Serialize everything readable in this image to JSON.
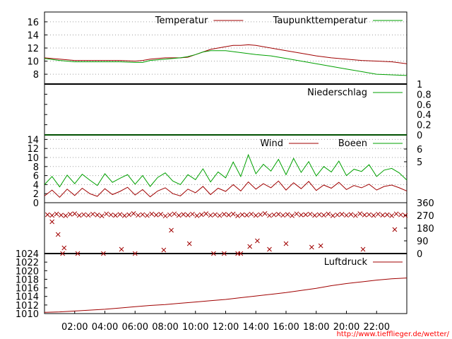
{
  "colors": {
    "red": "#a00000",
    "green": "#00a000",
    "grid": "#a0a0a0",
    "credit": "#ff0000"
  },
  "x_axis": {
    "start_hour": 0,
    "end_hour": 24,
    "ticks": [
      {
        "hour": 2,
        "label": "02:00"
      },
      {
        "hour": 4,
        "label": "04:00"
      },
      {
        "hour": 6,
        "label": "06:00"
      },
      {
        "hour": 8,
        "label": "08:00"
      },
      {
        "hour": 10,
        "label": "10:00"
      },
      {
        "hour": 12,
        "label": "12:00"
      },
      {
        "hour": 14,
        "label": "14:00"
      },
      {
        "hour": 16,
        "label": "16:00"
      },
      {
        "hour": 18,
        "label": "18:00"
      },
      {
        "hour": 20,
        "label": "20:00"
      },
      {
        "hour": 22,
        "label": "22:00"
      }
    ]
  },
  "credit": "http://www.tiefflieger.de/wetter/",
  "chart_data": [
    {
      "type": "line",
      "panel": "temperature",
      "ylim": [
        6.5,
        17.5
      ],
      "y_ticks": [
        "8",
        "10",
        "12",
        "14",
        "16"
      ],
      "grid": true,
      "legend_position": "top-right",
      "series": [
        {
          "name": "Temperatur",
          "color": "#a00000",
          "x": [
            0,
            1,
            2,
            3,
            4,
            5,
            6,
            6.5,
            7,
            8,
            9,
            9.5,
            10,
            10.5,
            11,
            11.5,
            12,
            12.5,
            13,
            13.5,
            14,
            15,
            16,
            17,
            18,
            19,
            20,
            21,
            22,
            23,
            24
          ],
          "y": [
            10.5,
            10.3,
            10.1,
            10.1,
            10.1,
            10.1,
            10.0,
            10.1,
            10.3,
            10.5,
            10.5,
            10.6,
            11.0,
            11.4,
            11.8,
            12.0,
            12.2,
            12.4,
            12.4,
            12.5,
            12.4,
            12.0,
            11.6,
            11.2,
            10.8,
            10.5,
            10.3,
            10.1,
            10.0,
            9.9,
            9.6
          ]
        },
        {
          "name": "Taupunkttemperatur",
          "color": "#00a000",
          "x": [
            0,
            1,
            2,
            3,
            4,
            5,
            6,
            6.5,
            7,
            8,
            9,
            9.5,
            10,
            10.5,
            11,
            12,
            13,
            14,
            15,
            16,
            17,
            18,
            19,
            20,
            21,
            22,
            23,
            24
          ],
          "y": [
            10.4,
            10.1,
            9.9,
            9.9,
            9.9,
            9.9,
            9.8,
            9.8,
            10.1,
            10.3,
            10.5,
            10.7,
            11.0,
            11.4,
            11.6,
            11.6,
            11.3,
            11.0,
            10.8,
            10.4,
            10.0,
            9.6,
            9.2,
            8.8,
            8.4,
            8.0,
            7.9,
            7.8
          ]
        }
      ]
    },
    {
      "type": "line",
      "panel": "precipitation",
      "ylim": [
        0,
        1
      ],
      "y_ticks": [
        "0",
        "0.2",
        "0.4",
        "0.6",
        "0.8",
        "1"
      ],
      "grid": false,
      "legend_position": "top-right",
      "series": [
        {
          "name": "Niederschlag",
          "color": "#00a000",
          "x": [
            0,
            24
          ],
          "y": [
            0,
            0
          ]
        }
      ]
    },
    {
      "type": "line",
      "panel": "wind",
      "ylim": [
        0,
        15
      ],
      "y_ticks": [
        "0",
        "2",
        "4",
        "6",
        "8",
        "10",
        "12",
        "14"
      ],
      "y2_ticks": [
        "5",
        "6"
      ],
      "grid": true,
      "legend_position": "top-right",
      "series": [
        {
          "name": "Wind",
          "color": "#a00000",
          "x": [
            0,
            0.5,
            1,
            1.5,
            2,
            2.5,
            3,
            3.5,
            4,
            4.5,
            5,
            5.5,
            6,
            6.5,
            7,
            7.5,
            8,
            8.5,
            9,
            9.5,
            10,
            10.5,
            11,
            11.5,
            12,
            12.5,
            13,
            13.5,
            14,
            14.5,
            15,
            15.5,
            16,
            16.5,
            17,
            17.5,
            18,
            18.5,
            19,
            19.5,
            20,
            20.5,
            21,
            21.5,
            22,
            22.5,
            23,
            23.5,
            24
          ],
          "y": [
            1.5,
            2.8,
            1.2,
            3.0,
            1.6,
            3.2,
            2.0,
            1.4,
            3.1,
            1.8,
            2.5,
            3.4,
            1.7,
            2.9,
            1.3,
            2.6,
            3.3,
            2.0,
            1.5,
            3.0,
            2.2,
            3.6,
            1.8,
            3.2,
            2.5,
            4.0,
            2.6,
            4.6,
            3.0,
            4.2,
            3.3,
            4.8,
            2.8,
            4.4,
            3.1,
            4.7,
            2.7,
            3.9,
            3.2,
            4.5,
            2.9,
            3.8,
            3.3,
            4.1,
            2.8,
            3.6,
            3.9,
            3.3,
            2.6
          ]
        },
        {
          "name": "Boeen",
          "color": "#00a000",
          "x": [
            0,
            0.5,
            1,
            1.5,
            2,
            2.5,
            3,
            3.5,
            4,
            4.5,
            5,
            5.5,
            6,
            6.5,
            7,
            7.5,
            8,
            8.5,
            9,
            9.5,
            10,
            10.5,
            11,
            11.5,
            12,
            12.5,
            13,
            13.5,
            14,
            14.5,
            15,
            15.5,
            16,
            16.5,
            17,
            17.5,
            18,
            18.5,
            19,
            19.5,
            20,
            20.5,
            21,
            21.5,
            22,
            22.5,
            23,
            23.5,
            24
          ],
          "y": [
            4.0,
            5.8,
            3.5,
            6.1,
            4.2,
            6.3,
            5.0,
            3.8,
            6.4,
            4.5,
            5.4,
            6.2,
            4.1,
            6.0,
            3.6,
            5.6,
            6.6,
            4.8,
            4.0,
            6.2,
            5.1,
            7.5,
            4.6,
            6.8,
            5.5,
            9.0,
            5.8,
            10.6,
            6.4,
            8.5,
            7.0,
            9.6,
            6.2,
            9.8,
            6.7,
            9.1,
            5.9,
            8.0,
            6.8,
            9.2,
            6.0,
            7.4,
            6.9,
            8.4,
            5.8,
            7.2,
            7.6,
            6.6,
            5.0
          ]
        }
      ]
    },
    {
      "type": "scatter",
      "panel": "wind-direction",
      "ylim": [
        0,
        360
      ],
      "y2_ticks": [
        "0",
        "90",
        "180",
        "270",
        "360"
      ],
      "grid": false,
      "series": [
        {
          "name": "",
          "color": "#a00000",
          "x": [
            0.2,
            0.5,
            0.8,
            1.1,
            1.4,
            1.7,
            2.0,
            2.3,
            2.6,
            2.9,
            3.2,
            3.5,
            3.8,
            4.1,
            4.4,
            4.7,
            5.0,
            5.3,
            5.6,
            5.9,
            6.2,
            6.5,
            6.8,
            7.1,
            7.4,
            7.7,
            8.0,
            8.3,
            8.6,
            8.9,
            9.2,
            9.5,
            9.8,
            10.1,
            10.4,
            10.7,
            11.0,
            11.3,
            11.6,
            11.9,
            12.2,
            12.5,
            12.8,
            13.1,
            13.4,
            13.7,
            14.0,
            14.3,
            14.6,
            14.9,
            15.2,
            15.5,
            15.8,
            16.1,
            16.4,
            16.7,
            17.0,
            17.3,
            17.6,
            17.9,
            18.2,
            18.5,
            18.8,
            19.1,
            19.4,
            19.7,
            20.0,
            20.3,
            20.6,
            20.9,
            21.2,
            21.5,
            21.8,
            22.1,
            22.4,
            22.7,
            23.0,
            23.3,
            23.6,
            23.9,
            0.5,
            0.9,
            1.3,
            5.1,
            7.9,
            8.4,
            9.6,
            13.6,
            14.1,
            14.9,
            16.0,
            17.7,
            18.3,
            21.1,
            23.2,
            1.2,
            2.2,
            3.9,
            6.0,
            11.2,
            11.9,
            12.8,
            13.0
          ],
          "y": [
            275,
            270,
            280,
            272,
            268,
            278,
            282,
            270,
            276,
            271,
            279,
            273,
            267,
            281,
            274,
            270,
            277,
            268,
            275,
            283,
            271,
            276,
            269,
            280,
            273,
            278,
            266,
            274,
            281,
            270,
            277,
            272,
            279,
            268,
            275,
            282,
            271,
            276,
            269,
            278,
            273,
            280,
            267,
            275,
            272,
            279,
            270,
            276,
            283,
            269,
            274,
            278,
            271,
            277,
            268,
            281,
            273,
            275,
            279,
            270,
            276,
            272,
            280,
            268,
            274,
            278,
            271,
            277,
            269,
            282,
            273,
            276,
            270,
            279,
            272,
            275,
            268,
            281,
            274,
            270,
            225,
            135,
            40,
            30,
            25,
            165,
            70,
            50,
            90,
            30,
            70,
            45,
            55,
            30,
            170,
            0,
            0,
            0,
            0,
            0,
            0,
            0,
            0
          ]
        }
      ]
    },
    {
      "type": "line",
      "panel": "pressure",
      "ylim": [
        1010,
        1024
      ],
      "y_ticks": [
        "1010",
        "1012",
        "1014",
        "1016",
        "1018",
        "1020",
        "1022",
        "1024"
      ],
      "grid": false,
      "legend_position": "top-right",
      "series": [
        {
          "name": "Luftdruck",
          "color": "#a00000",
          "x": [
            0,
            1,
            2,
            3,
            4,
            5,
            6,
            7,
            8,
            9,
            10,
            11,
            12,
            13,
            14,
            15,
            16,
            17,
            18,
            19,
            20,
            21,
            22,
            23,
            24
          ],
          "y": [
            1010.3,
            1010.4,
            1010.6,
            1010.8,
            1011.0,
            1011.3,
            1011.6,
            1011.9,
            1012.1,
            1012.4,
            1012.7,
            1013.0,
            1013.3,
            1013.7,
            1014.1,
            1014.5,
            1014.9,
            1015.4,
            1015.9,
            1016.5,
            1017.0,
            1017.4,
            1017.8,
            1018.1,
            1018.3
          ]
        }
      ]
    }
  ]
}
